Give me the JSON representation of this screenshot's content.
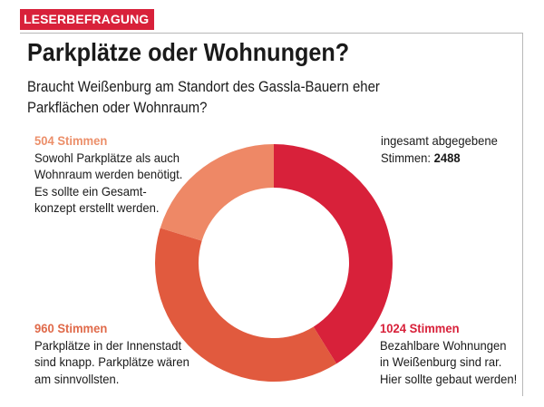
{
  "badge": "LESERBEFRAGUNG",
  "title": "Parkplätze oder Wohnungen?",
  "subtitle": [
    "Braucht Weißenburg am Standort des Gassla-Bauern eher",
    "Parkflächen oder Wohnraum?"
  ],
  "total": {
    "lines": [
      "ingesamt abgegebene",
      "Stimmen: "
    ],
    "value": "2488"
  },
  "chart_data": {
    "type": "pie",
    "donut": true,
    "total": 2488,
    "slices": [
      {
        "value": 1024,
        "label": "1024 Stimmen",
        "color": "#d8213a",
        "text": [
          "Bezahlbare Wohnungen",
          "in Weißenburg sind rar.",
          "Hier sollte gebaut werden!"
        ]
      },
      {
        "value": 960,
        "label": "960 Stimmen",
        "color": "#e15a3e",
        "text": [
          "Parkplätze in der Innenstadt",
          "sind knapp. Parkplätze wären",
          "am sinnvollsten."
        ]
      },
      {
        "value": 504,
        "label": "504 Stimmen",
        "color": "#ee8866",
        "text": [
          "Sowohl Parkplätze als auch",
          "Wohnraum werden benötigt.",
          "Es sollte ein Gesamt-",
          "konzept erstellt werden."
        ]
      }
    ]
  }
}
